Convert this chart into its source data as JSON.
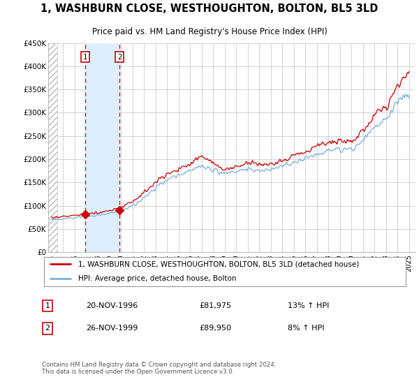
{
  "title": "1, WASHBURN CLOSE, WESTHOUGHTON, BOLTON, BL5 3LD",
  "subtitle": "Price paid vs. HM Land Registry's House Price Index (HPI)",
  "legend_line1": "1, WASHBURN CLOSE, WESTHOUGHTON, BOLTON, BL5 3LD (detached house)",
  "legend_line2": "HPI: Average price, detached house, Bolton",
  "sale1_label": "1",
  "sale1_date": "20-NOV-1996",
  "sale1_price": "£81,975",
  "sale1_hpi": "13% ↑ HPI",
  "sale2_label": "2",
  "sale2_date": "26-NOV-1999",
  "sale2_price": "£89,950",
  "sale2_hpi": "8% ↑ HPI",
  "footer": "Contains HM Land Registry data © Crown copyright and database right 2024.\nThis data is licensed under the Open Government Licence v3.0.",
  "sale1_x": 1996.89,
  "sale1_y": 81975,
  "sale2_x": 1999.9,
  "sale2_y": 89950,
  "red_color": "#cc0000",
  "blue_color": "#7aaedc",
  "hatch_color": "#cccccc",
  "shade_color": "#ddeeff",
  "ylim": [
    0,
    450000
  ],
  "xlim": [
    1993.7,
    2025.5
  ],
  "yticks": [
    0,
    50000,
    100000,
    150000,
    200000,
    250000,
    300000,
    350000,
    400000,
    450000
  ],
  "ytick_labels": [
    "£0",
    "£50K",
    "£100K",
    "£150K",
    "£200K",
    "£250K",
    "£300K",
    "£350K",
    "£400K",
    "£450K"
  ],
  "xticks": [
    1994,
    1995,
    1996,
    1997,
    1998,
    1999,
    2000,
    2001,
    2002,
    2003,
    2004,
    2005,
    2006,
    2007,
    2008,
    2009,
    2010,
    2011,
    2012,
    2013,
    2014,
    2015,
    2016,
    2017,
    2018,
    2019,
    2020,
    2021,
    2022,
    2023,
    2024,
    2025
  ]
}
